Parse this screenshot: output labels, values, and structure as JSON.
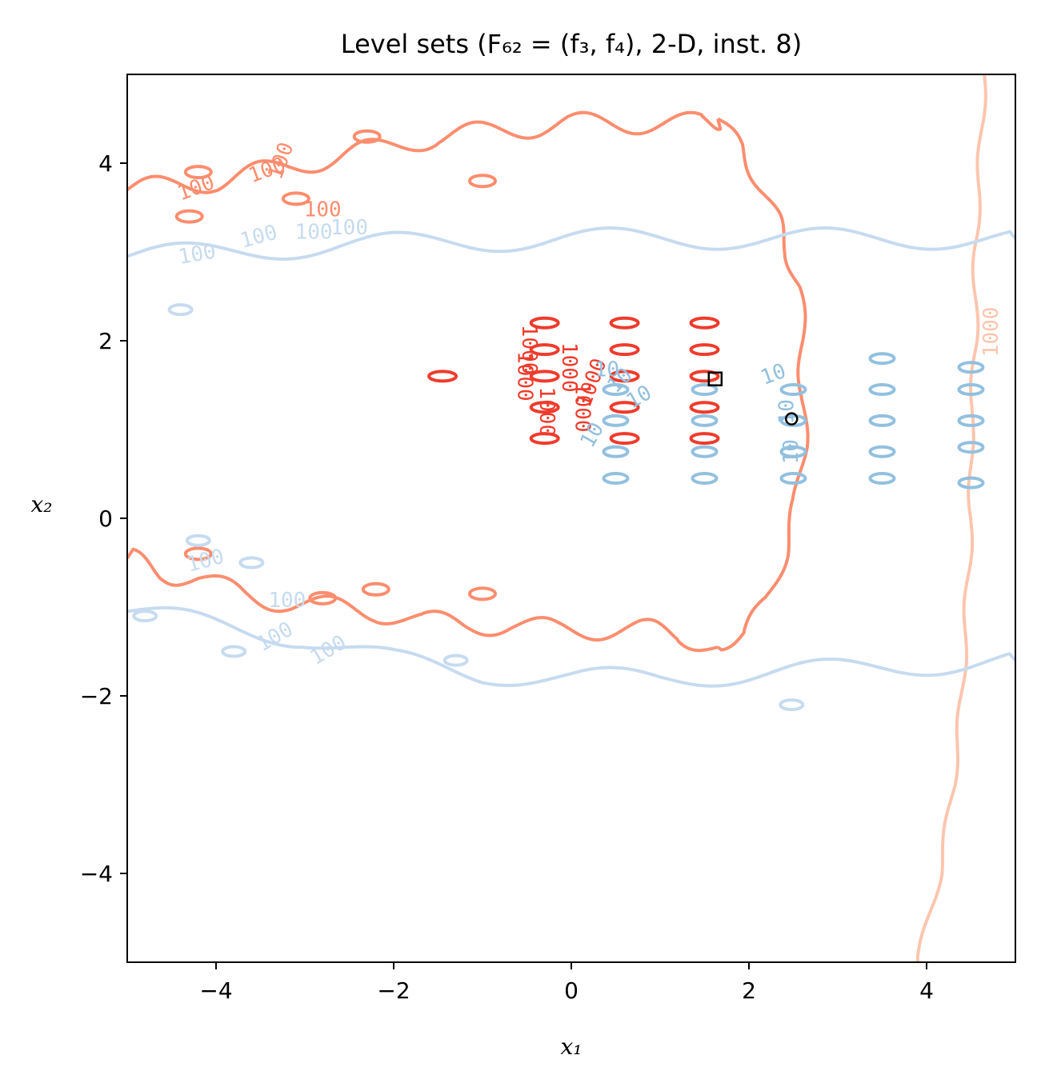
{
  "chart_data": {
    "type": "contour",
    "title": "Level sets (F₆₂ = (f₃, f₄), 2-D, inst. 8)",
    "xlabel": "x₁",
    "ylabel": "x₂",
    "xlim": [
      -5,
      5
    ],
    "ylim": [
      -5,
      5
    ],
    "xticks": [
      -4,
      -2,
      0,
      2,
      4
    ],
    "yticks": [
      -4,
      -2,
      0,
      2,
      4
    ],
    "xtick_labels": [
      "−4",
      "−2",
      "0",
      "2",
      "4"
    ],
    "ytick_labels": [
      "−4",
      "−2",
      "0",
      "2",
      "4"
    ],
    "grid": false,
    "colors": {
      "f3_outer": "#fc8d6e",
      "f3_inner": "#ef3b2c",
      "f3_far": "#fcc5ae",
      "f4_outer": "#c6dbef",
      "f4_inner": "#92c0df",
      "optimum_marker": "#000000"
    },
    "series": [
      {
        "contour_labels": [
          "100",
          "100",
          "100",
          "100"
        ],
        "curves": [
          {
            "level": "100",
            "kind": "upper",
            "points": [
              [
                -5,
                3.7
              ],
              [
                -4.5,
                3.75
              ],
              [
                -4,
                3.8
              ],
              [
                -3.5,
                3.9
              ],
              [
                -3,
                4.0
              ],
              [
                -2.5,
                4.1
              ],
              [
                -2,
                4.2
              ],
              [
                -1.5,
                4.3
              ],
              [
                -1,
                4.35
              ],
              [
                -0.5,
                4.4
              ],
              [
                0,
                4.45
              ],
              [
                0.5,
                4.45
              ],
              [
                1,
                4.45
              ],
              [
                1.5,
                4.45
              ],
              [
                1.65,
                4.5
              ]
            ]
          },
          {
            "level": "100",
            "kind": "boundary",
            "points": [
              [
                1.65,
                4.5
              ],
              [
                1.9,
                4.2
              ],
              [
                2.1,
                3.8
              ],
              [
                2.3,
                3.4
              ],
              [
                2.45,
                3.0
              ],
              [
                2.55,
                2.6
              ],
              [
                2.6,
                2.0
              ],
              [
                2.62,
                1.4
              ],
              [
                2.6,
                0.8
              ],
              [
                2.55,
                0.2
              ],
              [
                2.4,
                -0.4
              ],
              [
                2.2,
                -0.9
              ],
              [
                1.95,
                -1.3
              ],
              [
                1.65,
                -1.45
              ]
            ]
          },
          {
            "level": "100",
            "kind": "lower",
            "points": [
              [
                1.65,
                -1.45
              ],
              [
                1.2,
                -1.3
              ],
              [
                0.8,
                -1.25
              ],
              [
                0.3,
                -1.25
              ],
              [
                -0.2,
                -1.25
              ],
              [
                -0.7,
                -1.2
              ],
              [
                -1.2,
                -1.2
              ],
              [
                -1.7,
                -1.15
              ],
              [
                -2.2,
                -1.05
              ],
              [
                -2.7,
                -1.0
              ],
              [
                -3.2,
                -0.95
              ],
              [
                -3.7,
                -0.85
              ],
              [
                -4.2,
                -0.7
              ],
              [
                -4.6,
                -0.6
              ],
              [
                -5,
                -0.45
              ]
            ]
          }
        ]
      },
      {
        "contour_labels": [
          "1000",
          "1000",
          "1000",
          "1000",
          "1000",
          "1000"
        ],
        "blobs": [
          {
            "x": -1.45,
            "y": 1.6
          },
          {
            "x": -0.3,
            "y": 2.2
          },
          {
            "x": -0.3,
            "y": 1.9
          },
          {
            "x": -0.3,
            "y": 1.6
          },
          {
            "x": -0.3,
            "y": 1.25
          },
          {
            "x": -0.3,
            "y": 0.9
          },
          {
            "x": 0.6,
            "y": 2.2
          },
          {
            "x": 0.6,
            "y": 1.9
          },
          {
            "x": 0.6,
            "y": 1.6
          },
          {
            "x": 0.6,
            "y": 1.25
          },
          {
            "x": 0.6,
            "y": 0.9
          },
          {
            "x": 1.5,
            "y": 2.2
          },
          {
            "x": 1.5,
            "y": 1.9
          },
          {
            "x": 1.5,
            "y": 1.6
          },
          {
            "x": 1.5,
            "y": 1.25
          },
          {
            "x": 1.5,
            "y": 0.9
          }
        ]
      },
      {
        "contour_labels": [
          "1000"
        ],
        "curves": [
          {
            "level": "1000",
            "kind": "edge",
            "points": [
              [
                4.65,
                5
              ],
              [
                4.6,
                4
              ],
              [
                4.55,
                3
              ],
              [
                4.55,
                2
              ],
              [
                4.5,
                1
              ],
              [
                4.5,
                0
              ],
              [
                4.45,
                -1
              ],
              [
                4.4,
                -2
              ],
              [
                4.3,
                -3
              ],
              [
                4.15,
                -4
              ],
              [
                3.9,
                -5
              ]
            ]
          }
        ]
      },
      {
        "contour_labels": [
          "100",
          "100",
          "100",
          "100",
          "100",
          "100",
          "100",
          "100"
        ],
        "curves": [
          {
            "level": "100",
            "kind": "upper",
            "points": [
              [
                -5,
                2.95
              ],
              [
                -4,
                3.0
              ],
              [
                -3,
                3.05
              ],
              [
                -2,
                3.1
              ],
              [
                -1,
                3.12
              ],
              [
                0,
                3.15
              ],
              [
                1,
                3.15
              ],
              [
                2,
                3.15
              ],
              [
                3,
                3.15
              ],
              [
                4,
                3.15
              ],
              [
                5,
                3.15
              ]
            ]
          },
          {
            "level": "100",
            "kind": "lower",
            "points": [
              [
                -5,
                -1.05
              ],
              [
                -4,
                -1.2
              ],
              [
                -3,
                -1.35
              ],
              [
                -2,
                -1.6
              ],
              [
                -1,
                -1.75
              ],
              [
                0,
                -1.8
              ],
              [
                1,
                -1.8
              ],
              [
                2,
                -1.75
              ],
              [
                3,
                -1.7
              ],
              [
                4,
                -1.65
              ],
              [
                5,
                -1.6
              ]
            ]
          }
        ]
      },
      {
        "contour_labels": [
          "10",
          "10",
          "10",
          "10",
          "10",
          "10",
          "10"
        ],
        "blobs": [
          {
            "x": 0.5,
            "y": 1.45
          },
          {
            "x": 0.5,
            "y": 1.1
          },
          {
            "x": 0.5,
            "y": 0.75
          },
          {
            "x": 0.5,
            "y": 0.45
          },
          {
            "x": 1.5,
            "y": 1.45
          },
          {
            "x": 1.5,
            "y": 1.1
          },
          {
            "x": 1.5,
            "y": 0.75
          },
          {
            "x": 1.5,
            "y": 0.45
          },
          {
            "x": 2.5,
            "y": 1.45
          },
          {
            "x": 2.5,
            "y": 1.1
          },
          {
            "x": 2.5,
            "y": 0.75
          },
          {
            "x": 2.5,
            "y": 0.45
          },
          {
            "x": 3.5,
            "y": 1.8
          },
          {
            "x": 3.5,
            "y": 1.45
          },
          {
            "x": 3.5,
            "y": 1.1
          },
          {
            "x": 3.5,
            "y": 0.75
          },
          {
            "x": 3.5,
            "y": 0.45
          },
          {
            "x": 4.5,
            "y": 1.7
          },
          {
            "x": 4.5,
            "y": 1.45
          },
          {
            "x": 4.5,
            "y": 1.1
          },
          {
            "x": 4.5,
            "y": 0.8
          },
          {
            "x": 4.5,
            "y": 0.4
          }
        ]
      }
    ],
    "markers": [
      {
        "shape": "square",
        "x": 1.62,
        "y": 1.57
      },
      {
        "shape": "circle",
        "x": 2.48,
        "y": 1.12
      }
    ]
  }
}
